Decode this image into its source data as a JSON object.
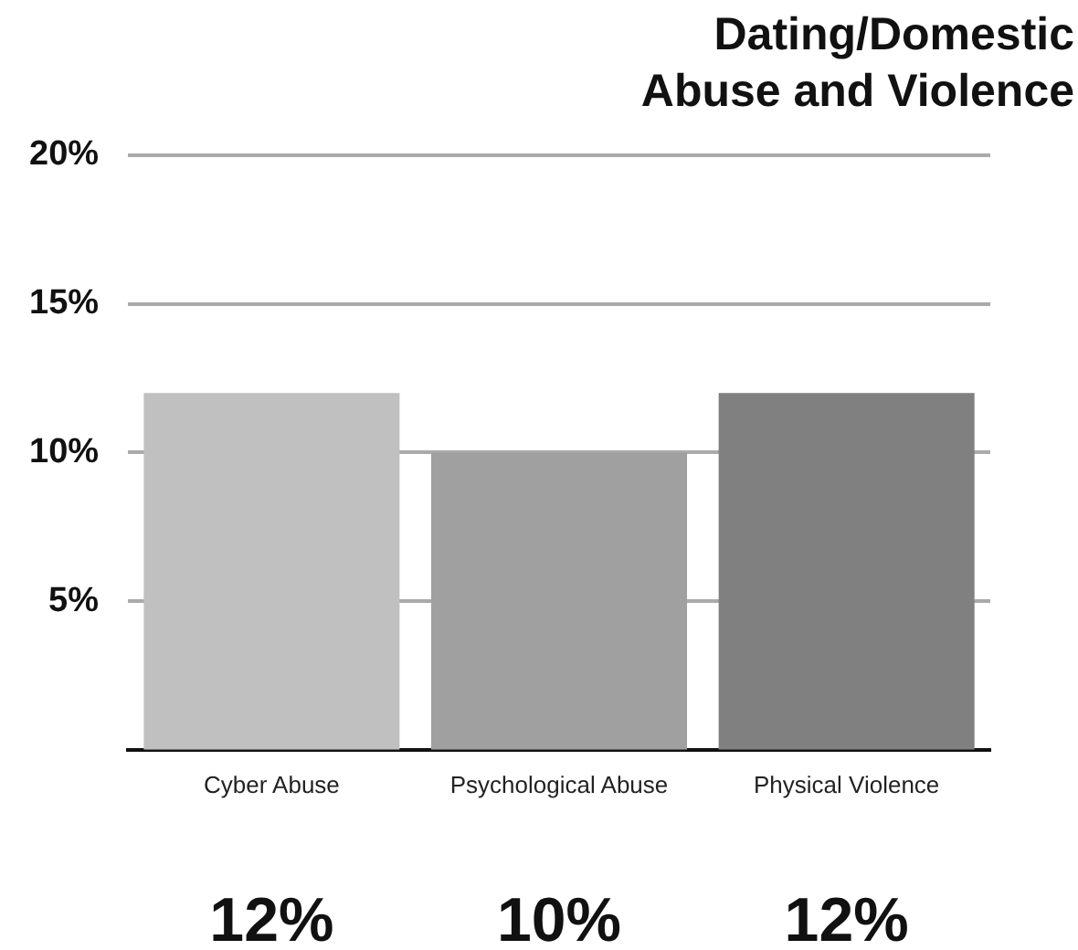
{
  "chart_data": {
    "type": "bar",
    "title": "Dating/Domestic Abuse and Violence",
    "categories": [
      "Cyber Abuse",
      "Psychological Abuse",
      "Physical Violence"
    ],
    "values": [
      12,
      10,
      12
    ],
    "colors": [
      "#c0c0c0",
      "#a0a0a0",
      "#808080"
    ],
    "value_labels": [
      "12%",
      "10%",
      "12%"
    ],
    "ylim": [
      0,
      20
    ],
    "yticks": [
      {
        "value": 5,
        "label": "5%"
      },
      {
        "value": 10,
        "label": "10%"
      },
      {
        "value": 15,
        "label": "15%"
      },
      {
        "value": 20,
        "label": "20%"
      }
    ],
    "grid": "y",
    "legend": false
  }
}
